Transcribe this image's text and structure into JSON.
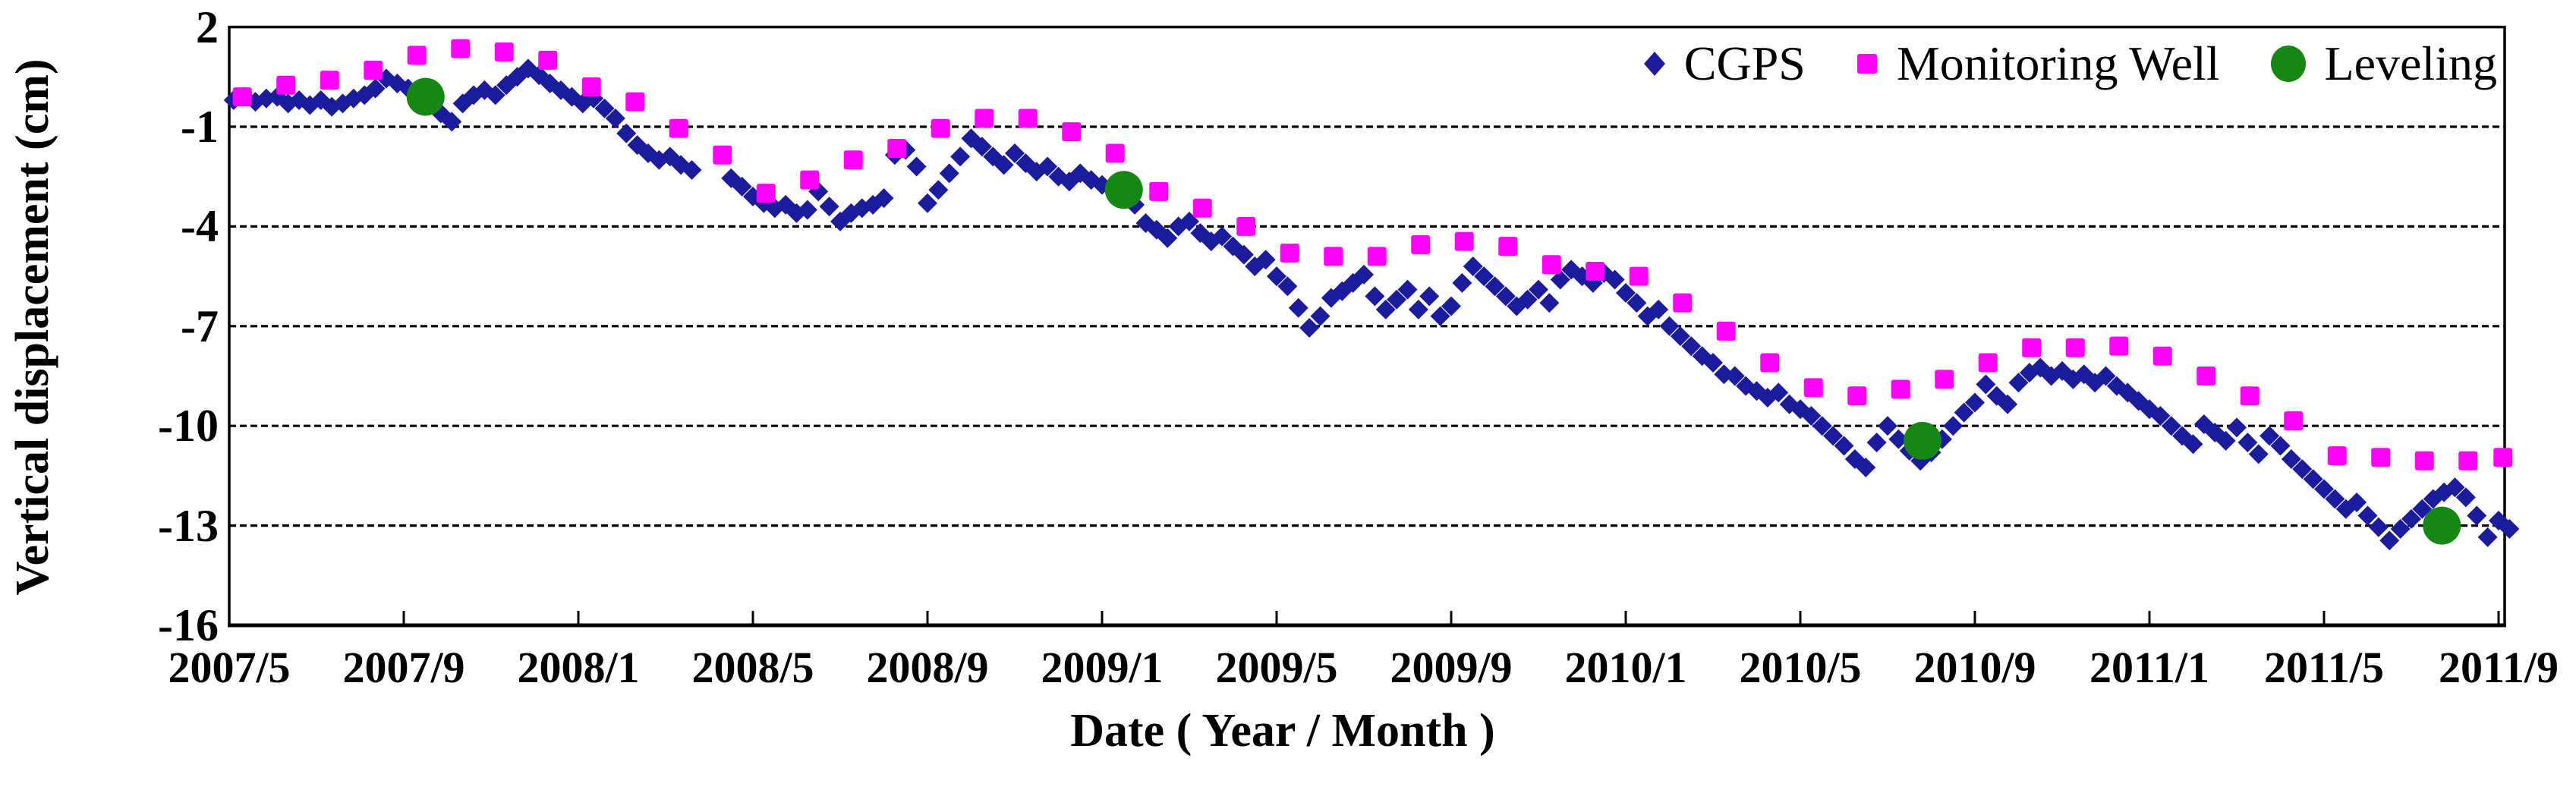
{
  "axes": {
    "x_title": "Date ( Year / Month )",
    "y_title": "Vertical displacement (cm)",
    "y_tick_labels": [
      "2",
      "-1",
      "-4",
      "-7",
      "-10",
      "-13",
      "-16"
    ],
    "x_tick_labels": [
      "2007/5",
      "2007/9",
      "2008/1",
      "2008/5",
      "2008/9",
      "2009/1",
      "2009/5",
      "2009/9",
      "2010/1",
      "2010/5",
      "2010/9",
      "2011/1",
      "2011/5",
      "2011/9"
    ]
  },
  "legend": {
    "cgps_label": "CGPS",
    "well_label": "Monitoring Well",
    "leveling_label": "Leveling"
  },
  "colors": {
    "cgps": "#1B1B9E",
    "monitoring_well": "#FF00FF",
    "leveling": "#168712",
    "grid": "#000000",
    "frame": "#000000",
    "text": "#000000"
  },
  "chart_data": {
    "type": "scatter",
    "title": "",
    "xlabel": "Date ( Year / Month )",
    "ylabel": "Vertical displacement (cm)",
    "x_axis": {
      "start": "2007/5",
      "end": "2011/9",
      "unit": "months since 2007/5",
      "tick_month_offsets": [
        0,
        4,
        8,
        12,
        16,
        20,
        24,
        28,
        32,
        36,
        40,
        44,
        48,
        52
      ],
      "tick_labels": [
        "2007/5",
        "2007/9",
        "2008/1",
        "2008/5",
        "2008/9",
        "2009/1",
        "2009/5",
        "2009/9",
        "2010/1",
        "2010/5",
        "2010/9",
        "2011/1",
        "2011/5",
        "2011/9"
      ]
    },
    "ylim": [
      -16,
      2
    ],
    "y_ticks": [
      2,
      -1,
      -4,
      -7,
      -10,
      -13,
      -16
    ],
    "gridlines_at": [
      -1,
      -4,
      -7,
      -10,
      -13
    ],
    "grid_style": "dashed",
    "legend_position": "top-right-inside",
    "series": [
      {
        "name": "CGPS",
        "marker": "diamond",
        "color": "#1B1B9E",
        "points": [
          [
            0.1,
            -0.2
          ],
          [
            0.35,
            -0.1
          ],
          [
            0.6,
            -0.25
          ],
          [
            0.85,
            -0.15
          ],
          [
            1.1,
            -0.1
          ],
          [
            1.35,
            -0.3
          ],
          [
            1.6,
            -0.2
          ],
          [
            1.85,
            -0.35
          ],
          [
            2.1,
            -0.2
          ],
          [
            2.35,
            -0.4
          ],
          [
            2.6,
            -0.3
          ],
          [
            2.85,
            -0.15
          ],
          [
            3.1,
            -0.05
          ],
          [
            3.35,
            0.15
          ],
          [
            3.6,
            0.45
          ],
          [
            3.85,
            0.3
          ],
          [
            4.1,
            0.15
          ],
          [
            4.35,
            0
          ],
          [
            4.6,
            -0.1
          ],
          [
            4.85,
            -0.6
          ],
          [
            5.1,
            -0.85
          ],
          [
            5.35,
            -0.3
          ],
          [
            5.6,
            -0.05
          ],
          [
            5.85,
            0.1
          ],
          [
            6.1,
            -0.05
          ],
          [
            6.35,
            0.25
          ],
          [
            6.6,
            0.5
          ],
          [
            6.85,
            0.75
          ],
          [
            7.1,
            0.55
          ],
          [
            7.35,
            0.3
          ],
          [
            7.6,
            0.1
          ],
          [
            7.85,
            -0.1
          ],
          [
            8.1,
            -0.3
          ],
          [
            8.35,
            -0.15
          ],
          [
            8.6,
            -0.45
          ],
          [
            8.85,
            -0.75
          ],
          [
            9.1,
            -1.2
          ],
          [
            9.35,
            -1.55
          ],
          [
            9.6,
            -1.8
          ],
          [
            9.85,
            -2.0
          ],
          [
            10.1,
            -1.9
          ],
          [
            10.35,
            -2.15
          ],
          [
            10.6,
            -2.3
          ],
          [
            11.5,
            -2.55
          ],
          [
            11.75,
            -2.8
          ],
          [
            12,
            -3.1
          ],
          [
            12.25,
            -3.3
          ],
          [
            12.5,
            -3.45
          ],
          [
            12.75,
            -3.35
          ],
          [
            13,
            -3.6
          ],
          [
            13.25,
            -3.5
          ],
          [
            13.5,
            -2.95
          ],
          [
            13.75,
            -3.4
          ],
          [
            14,
            -3.85
          ],
          [
            14.25,
            -3.6
          ],
          [
            14.5,
            -3.45
          ],
          [
            14.75,
            -3.35
          ],
          [
            15,
            -3.15
          ],
          [
            15.25,
            -1.85
          ],
          [
            15.5,
            -1.7
          ],
          [
            15.75,
            -2.2
          ],
          [
            16,
            -3.3
          ],
          [
            16.25,
            -2.9
          ],
          [
            16.5,
            -2.4
          ],
          [
            16.75,
            -1.9
          ],
          [
            17,
            -1.35
          ],
          [
            17.25,
            -1.6
          ],
          [
            17.5,
            -1.9
          ],
          [
            17.75,
            -2.15
          ],
          [
            18,
            -1.8
          ],
          [
            18.25,
            -2.1
          ],
          [
            18.5,
            -2.35
          ],
          [
            18.75,
            -2.2
          ],
          [
            19,
            -2.5
          ],
          [
            19.25,
            -2.65
          ],
          [
            19.5,
            -2.4
          ],
          [
            19.75,
            -2.6
          ],
          [
            20,
            -2.75
          ],
          [
            20.25,
            -2.9
          ],
          [
            20.5,
            -3.1
          ],
          [
            20.75,
            -3.35
          ],
          [
            21,
            -3.9
          ],
          [
            21.25,
            -4.1
          ],
          [
            21.5,
            -4.35
          ],
          [
            21.75,
            -4.0
          ],
          [
            22,
            -3.85
          ],
          [
            22.25,
            -4.2
          ],
          [
            22.5,
            -4.45
          ],
          [
            22.75,
            -4.3
          ],
          [
            23,
            -4.6
          ],
          [
            23.25,
            -4.85
          ],
          [
            23.5,
            -5.2
          ],
          [
            23.75,
            -5.0
          ],
          [
            24,
            -5.5
          ],
          [
            24.25,
            -5.8
          ],
          [
            24.5,
            -6.45
          ],
          [
            24.75,
            -7.05
          ],
          [
            25,
            -6.7
          ],
          [
            25.25,
            -6.15
          ],
          [
            25.5,
            -5.95
          ],
          [
            25.75,
            -5.7
          ],
          [
            26,
            -5.45
          ],
          [
            26.25,
            -6.1
          ],
          [
            26.5,
            -6.5
          ],
          [
            26.75,
            -6.2
          ],
          [
            27,
            -5.9
          ],
          [
            27.25,
            -6.5
          ],
          [
            27.5,
            -6.1
          ],
          [
            27.75,
            -6.7
          ],
          [
            28,
            -6.4
          ],
          [
            28.25,
            -5.7
          ],
          [
            28.5,
            -5.2
          ],
          [
            28.75,
            -5.5
          ],
          [
            29,
            -5.8
          ],
          [
            29.25,
            -6.1
          ],
          [
            29.5,
            -6.4
          ],
          [
            29.75,
            -6.2
          ],
          [
            30,
            -5.9
          ],
          [
            30.25,
            -6.3
          ],
          [
            30.5,
            -5.6
          ],
          [
            30.75,
            -5.3
          ],
          [
            31,
            -5.5
          ],
          [
            31.25,
            -5.7
          ],
          [
            31.5,
            -5.4
          ],
          [
            31.75,
            -5.6
          ],
          [
            32,
            -6.0
          ],
          [
            32.25,
            -6.3
          ],
          [
            32.5,
            -6.7
          ],
          [
            32.75,
            -6.5
          ],
          [
            33,
            -7.0
          ],
          [
            33.25,
            -7.3
          ],
          [
            33.5,
            -7.6
          ],
          [
            33.75,
            -7.9
          ],
          [
            34,
            -8.1
          ],
          [
            34.25,
            -8.45
          ],
          [
            34.5,
            -8.5
          ],
          [
            34.75,
            -8.8
          ],
          [
            35,
            -8.95
          ],
          [
            35.25,
            -9.15
          ],
          [
            35.5,
            -9.0
          ],
          [
            35.75,
            -9.35
          ],
          [
            36,
            -9.5
          ],
          [
            36.25,
            -9.7
          ],
          [
            36.5,
            -10.0
          ],
          [
            36.75,
            -10.3
          ],
          [
            37,
            -10.6
          ],
          [
            37.25,
            -11.0
          ],
          [
            37.5,
            -11.25
          ],
          [
            37.75,
            -10.5
          ],
          [
            38,
            -10.0
          ],
          [
            38.25,
            -10.4
          ],
          [
            38.5,
            -10.75
          ],
          [
            38.75,
            -11.05
          ],
          [
            39,
            -10.8
          ],
          [
            39.25,
            -10.4
          ],
          [
            39.5,
            -10.0
          ],
          [
            39.75,
            -9.6
          ],
          [
            40,
            -9.3
          ],
          [
            40.25,
            -8.75
          ],
          [
            40.5,
            -9.1
          ],
          [
            40.75,
            -9.35
          ],
          [
            41,
            -8.7
          ],
          [
            41.25,
            -8.4
          ],
          [
            41.5,
            -8.25
          ],
          [
            41.75,
            -8.5
          ],
          [
            42,
            -8.35
          ],
          [
            42.25,
            -8.6
          ],
          [
            42.5,
            -8.45
          ],
          [
            42.75,
            -8.7
          ],
          [
            43,
            -8.5
          ],
          [
            43.25,
            -8.8
          ],
          [
            43.5,
            -9.0
          ],
          [
            43.75,
            -9.25
          ],
          [
            44,
            -9.5
          ],
          [
            44.25,
            -9.7
          ],
          [
            44.5,
            -10.0
          ],
          [
            44.75,
            -10.3
          ],
          [
            45,
            -10.55
          ],
          [
            45.25,
            -9.95
          ],
          [
            45.5,
            -10.2
          ],
          [
            45.75,
            -10.45
          ],
          [
            46,
            -10.05
          ],
          [
            46.25,
            -10.5
          ],
          [
            46.5,
            -10.85
          ],
          [
            46.75,
            -10.3
          ],
          [
            47,
            -10.6
          ],
          [
            47.25,
            -11.0
          ],
          [
            47.5,
            -11.3
          ],
          [
            47.75,
            -11.6
          ],
          [
            48,
            -11.9
          ],
          [
            48.25,
            -12.2
          ],
          [
            48.5,
            -12.5
          ],
          [
            48.75,
            -12.3
          ],
          [
            49,
            -12.7
          ],
          [
            49.25,
            -13.05
          ],
          [
            49.5,
            -13.45
          ],
          [
            49.75,
            -13.1
          ],
          [
            50,
            -12.8
          ],
          [
            50.25,
            -12.5
          ],
          [
            50.5,
            -12.2
          ],
          [
            50.75,
            -12.0
          ],
          [
            51,
            -11.85
          ],
          [
            51.25,
            -12.15
          ],
          [
            51.5,
            -12.7
          ],
          [
            51.75,
            -13.35
          ],
          [
            52,
            -12.85
          ],
          [
            52.25,
            -13.1
          ]
        ]
      },
      {
        "name": "Monitoring Well",
        "marker": "square",
        "color": "#FF00FF",
        "points": [
          [
            0.3,
            -0.1
          ],
          [
            1.3,
            0.25
          ],
          [
            2.3,
            0.4
          ],
          [
            3.3,
            0.7
          ],
          [
            4.3,
            1.15
          ],
          [
            5.3,
            1.35
          ],
          [
            6.3,
            1.25
          ],
          [
            7.3,
            1.0
          ],
          [
            8.3,
            0.2
          ],
          [
            9.3,
            -0.25
          ],
          [
            10.3,
            -1.05
          ],
          [
            11.3,
            -1.85
          ],
          [
            12.3,
            -3.0
          ],
          [
            13.3,
            -2.6
          ],
          [
            14.3,
            -2.0
          ],
          [
            15.3,
            -1.65
          ],
          [
            16.3,
            -1.05
          ],
          [
            17.3,
            -0.75
          ],
          [
            18.3,
            -0.75
          ],
          [
            19.3,
            -1.15
          ],
          [
            20.3,
            -1.8
          ],
          [
            21.3,
            -2.95
          ],
          [
            22.3,
            -3.45
          ],
          [
            23.3,
            -4.0
          ],
          [
            24.3,
            -4.8
          ],
          [
            25.3,
            -4.9
          ],
          [
            26.3,
            -4.9
          ],
          [
            27.3,
            -4.55
          ],
          [
            28.3,
            -4.45
          ],
          [
            29.3,
            -4.6
          ],
          [
            30.3,
            -5.15
          ],
          [
            31.3,
            -5.35
          ],
          [
            32.3,
            -5.5
          ],
          [
            33.3,
            -6.3
          ],
          [
            34.3,
            -7.15
          ],
          [
            35.3,
            -8.1
          ],
          [
            36.3,
            -8.85
          ],
          [
            37.3,
            -9.1
          ],
          [
            38.3,
            -8.9
          ],
          [
            39.3,
            -8.6
          ],
          [
            40.3,
            -8.1
          ],
          [
            41.3,
            -7.65
          ],
          [
            42.3,
            -7.65
          ],
          [
            43.3,
            -7.6
          ],
          [
            44.3,
            -7.9
          ],
          [
            45.3,
            -8.5
          ],
          [
            46.3,
            -9.1
          ],
          [
            47.3,
            -9.85
          ],
          [
            48.3,
            -10.9
          ],
          [
            49.3,
            -10.95
          ],
          [
            50.3,
            -11.05
          ],
          [
            51.3,
            -11.05
          ],
          [
            52.1,
            -10.95
          ]
        ]
      },
      {
        "name": "Leveling",
        "marker": "circle",
        "color": "#168712",
        "points": [
          [
            4.5,
            -0.1
          ],
          [
            20.5,
            -2.9
          ],
          [
            38.8,
            -10.45
          ],
          [
            50.7,
            -13.0
          ]
        ]
      }
    ]
  }
}
